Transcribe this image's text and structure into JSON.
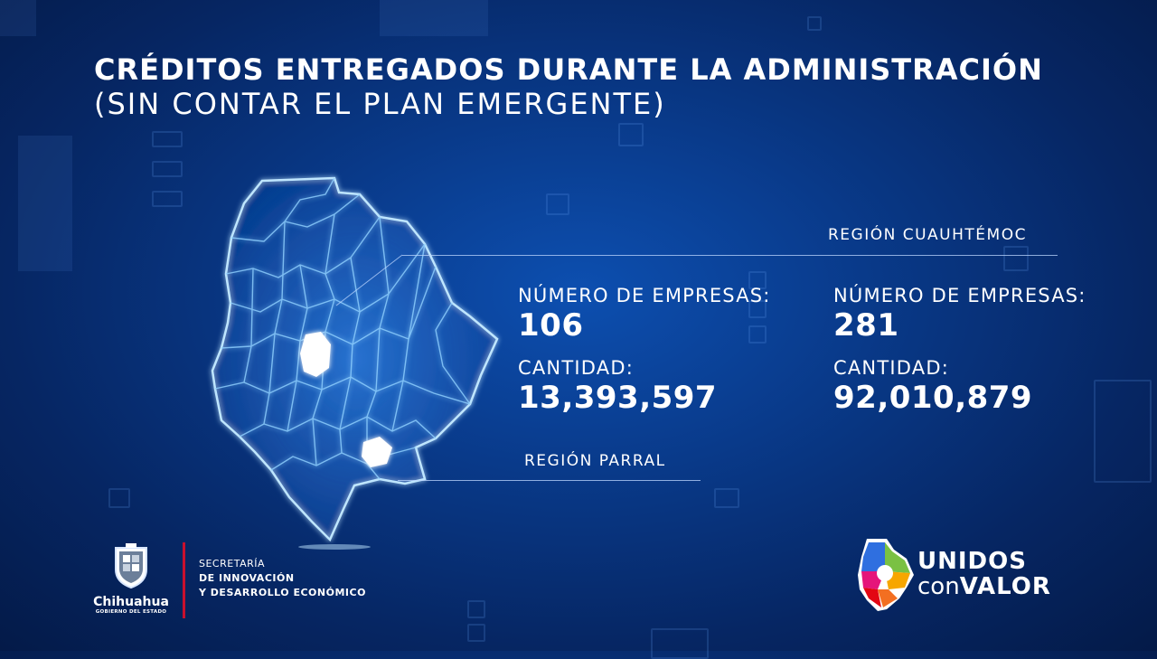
{
  "title": {
    "line1": "CRÉDITOS ENTREGADOS DURANTE LA ADMINISTRACIÓN",
    "line2": "(SIN CONTAR EL PLAN EMERGENTE)"
  },
  "regions": {
    "parral": {
      "label": "REGIÓN PARRAL",
      "empresas_label": "NÚMERO DE EMPRESAS:",
      "empresas": "106",
      "cantidad_label": "CANTIDAD:",
      "cantidad": "13,393,597"
    },
    "cuauhtemoc": {
      "label": "REGIÓN CUAUHTÉMOC",
      "empresas_label": "NÚMERO DE EMPRESAS:",
      "empresas": "281",
      "cantidad_label": "CANTIDAD:",
      "cantidad": "92,010,879"
    }
  },
  "footer": {
    "gov_name": "Chihuahua",
    "gov_sub": "GOBIERNO DEL ESTADO",
    "secretaria": "SECRETARÍA",
    "dept_line1": "DE INNOVACIÓN",
    "dept_line2": "Y DESARROLLO ECONÓMICO",
    "brand_line1": "UNIDOS",
    "brand_con": "con",
    "brand_valor": "VALOR"
  },
  "colors": {
    "background": "#093a8a",
    "map_glow": "#8fd0ff",
    "accent_red": "#c8102e"
  }
}
